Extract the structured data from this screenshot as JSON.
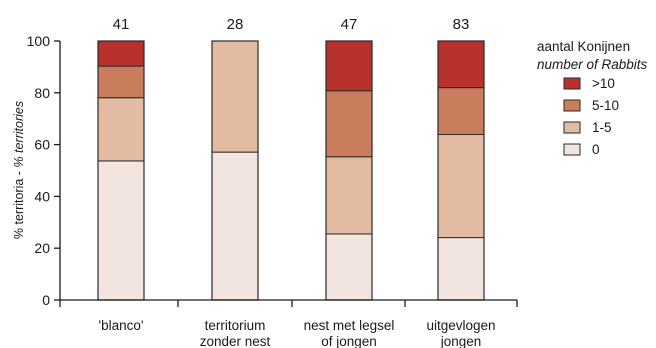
{
  "chart_data": {
    "type": "bar",
    "stacked": true,
    "categories": [
      [
        "'blanco'"
      ],
      [
        "territorium",
        "zonder nest"
      ],
      [
        "nest met legsel",
        "of jongen"
      ],
      [
        "uitgevlogen",
        "jongen"
      ]
    ],
    "counts": [
      "41",
      "28",
      "47",
      "83"
    ],
    "series": [
      {
        "name": "0",
        "color": "#f2e4de",
        "values": [
          53.7,
          57.1,
          25.5,
          24.1
        ]
      },
      {
        "name": "1-5",
        "color": "#e3bba2",
        "values": [
          24.4,
          42.9,
          29.8,
          39.8
        ]
      },
      {
        "name": "5-10",
        "color": "#c97d5c",
        "values": [
          12.2,
          0,
          25.5,
          18.1
        ]
      },
      {
        "name": ">10",
        "color": "#b8312c",
        "values": [
          9.7,
          0,
          19.2,
          18.0
        ]
      }
    ],
    "ylabel_main": "% territoria - ",
    "ylabel_italic": "% territories",
    "ylim": [
      0,
      100
    ],
    "yticks": [
      "0",
      "20",
      "40",
      "60",
      "80",
      "100"
    ],
    "legend": {
      "title": "aantal Konijnen",
      "subtitle": "number of Rabbits",
      "placement": "right"
    },
    "grid": false
  }
}
